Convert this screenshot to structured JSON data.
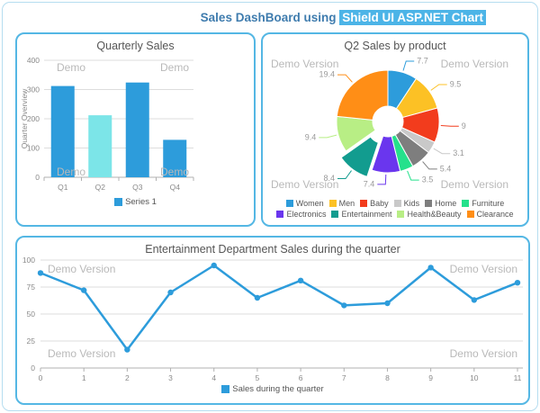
{
  "page": {
    "title_prefix": "Sales DashBoard using ",
    "title_highlight": "Shield UI ASP.NET Chart",
    "colors": {
      "accent_blue": "#2D9CDB",
      "panel_border": "#54B7E4",
      "outer_border": "#B5DDF0",
      "title_text": "#3F7CAE",
      "title_highlight_bg": "#4CB4E7",
      "watermark": "#B9B9B9"
    }
  },
  "watermarks": {
    "short": "Demo",
    "long": "Demo Version"
  },
  "chart_data": [
    {
      "type": "bar",
      "title": "Quarterly Sales",
      "categories": [
        "Q1",
        "Q2",
        "Q3",
        "Q4"
      ],
      "values": [
        312,
        212,
        324,
        128
      ],
      "bar_colors": [
        "#2D9CDB",
        "#7CE5E8",
        "#2D9CDB",
        "#2D9CDB"
      ],
      "ylabel": "Quarter Overview",
      "xlabel": "",
      "ylim": [
        0,
        400
      ],
      "yticks": [
        0,
        100,
        200,
        300,
        400
      ],
      "grid": true,
      "legend": [
        "Series 1"
      ],
      "legend_color": "#2D9CDB",
      "legend_position": "bottom"
    },
    {
      "type": "pie",
      "title": "Q2 Sales by product",
      "donut": true,
      "legend_position": "bottom",
      "slices": [
        {
          "label": "Women",
          "value": 7.7,
          "color": "#2D9CDB",
          "exploded": false
        },
        {
          "label": "Men",
          "value": 9.5,
          "color": "#FCC125",
          "exploded": false
        },
        {
          "label": "Baby",
          "value": 9,
          "color": "#F23C1D",
          "exploded": false
        },
        {
          "label": "Kids",
          "value": 3.1,
          "color": "#C9C9C9",
          "exploded": false
        },
        {
          "label": "Home",
          "value": 5.4,
          "color": "#7E7E7E",
          "exploded": false
        },
        {
          "label": "Furniture",
          "value": 3.5,
          "color": "#25E18C",
          "exploded": false
        },
        {
          "label": "Electronics",
          "value": 7.4,
          "color": "#6A36EE",
          "exploded": false
        },
        {
          "label": "Entertainment",
          "value": 8.4,
          "color": "#129C8F",
          "exploded": true
        },
        {
          "label": "Health&Beauty",
          "value": 9.4,
          "color": "#B8EE85",
          "exploded": false
        },
        {
          "label": "Clearance",
          "value": 19.4,
          "color": "#FF8E16",
          "exploded": false
        }
      ]
    },
    {
      "type": "line",
      "title": "Entertainment Department Sales during the quarter",
      "x": [
        0,
        1,
        2,
        3,
        4,
        5,
        6,
        7,
        8,
        9,
        10,
        11
      ],
      "values": [
        88,
        72,
        17,
        70,
        95,
        65,
        81,
        58,
        60,
        93,
        63,
        79
      ],
      "color": "#2D9CDB",
      "ylim": [
        0,
        100
      ],
      "yticks": [
        0,
        25,
        50,
        75,
        100
      ],
      "grid": true,
      "legend": [
        "Sales during the quarter"
      ],
      "legend_position": "bottom"
    }
  ]
}
